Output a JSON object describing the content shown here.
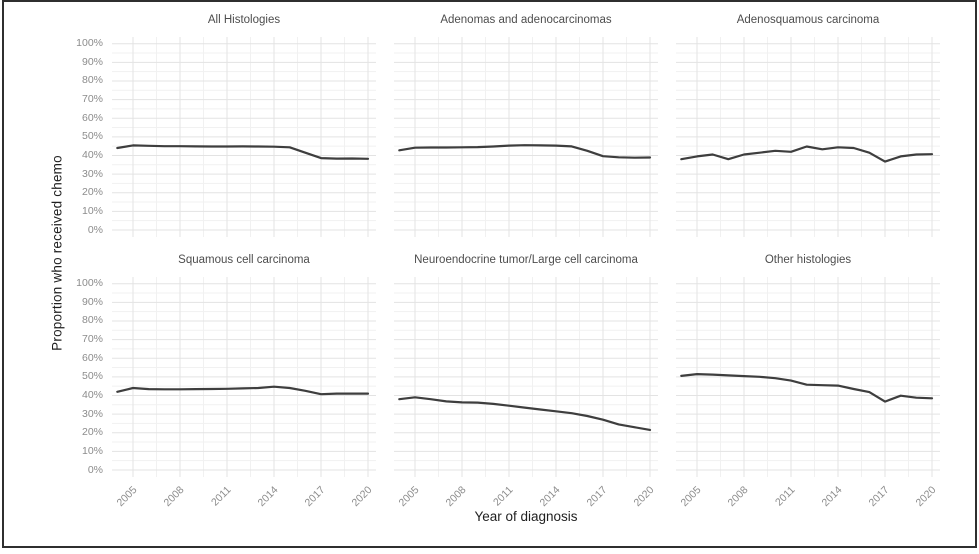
{
  "figure": {
    "y_axis_title": "Proportion who received chemo",
    "x_axis_title": "Year of diagnosis",
    "y_ticks": [
      "100%",
      "90%",
      "80%",
      "70%",
      "60%",
      "50%",
      "40%",
      "30%",
      "20%",
      "10%",
      "0%"
    ],
    "x_ticks": [
      "2005",
      "2008",
      "2011",
      "2014",
      "2017",
      "2020"
    ]
  },
  "chart_data": {
    "type": "line",
    "layout": "2x3-facet-grid",
    "x": [
      2004,
      2005,
      2006,
      2007,
      2008,
      2009,
      2010,
      2011,
      2012,
      2013,
      2014,
      2015,
      2016,
      2017,
      2018,
      2019,
      2020
    ],
    "series": [
      {
        "name": "All Histologies",
        "values": [
          44.0,
          45.4,
          45.2,
          45.0,
          45.0,
          44.9,
          44.8,
          44.8,
          44.9,
          44.8,
          44.7,
          44.4,
          41.5,
          38.6,
          38.3,
          38.4,
          38.2
        ]
      },
      {
        "name": "Adenomas and adenocarcinomas",
        "values": [
          42.8,
          44.2,
          44.3,
          44.3,
          44.4,
          44.5,
          44.8,
          45.3,
          45.5,
          45.4,
          45.3,
          44.9,
          42.5,
          39.6,
          39.0,
          38.8,
          38.9
        ]
      },
      {
        "name": "Adenosquamous carcinoma",
        "values": [
          38.0,
          39.5,
          40.5,
          38.0,
          40.5,
          41.5,
          42.5,
          42.0,
          44.8,
          43.3,
          44.4,
          44.0,
          41.5,
          36.7,
          39.5,
          40.5,
          40.7
        ]
      },
      {
        "name": "Squamous cell carcinoma",
        "values": [
          42.0,
          44.0,
          43.4,
          43.3,
          43.3,
          43.4,
          43.5,
          43.6,
          43.8,
          44.0,
          44.7,
          44.0,
          42.5,
          40.7,
          41.0,
          41.0,
          41.0
        ]
      },
      {
        "name": "Neuroendocrine tumor/Large cell carcinoma",
        "values": [
          38.0,
          39.0,
          38.0,
          36.8,
          36.3,
          36.2,
          35.5,
          34.5,
          33.5,
          32.5,
          31.5,
          30.5,
          29.0,
          27.0,
          24.5,
          23.0,
          21.5
        ]
      },
      {
        "name": "Other histologies",
        "values": [
          50.5,
          51.5,
          51.2,
          50.8,
          50.4,
          50.0,
          49.3,
          48.0,
          45.8,
          45.5,
          45.3,
          43.5,
          41.8,
          36.7,
          39.9,
          38.8,
          38.5
        ]
      }
    ],
    "title": "",
    "xlabel": "Year of diagnosis",
    "ylabel": "Proportion who received chemo",
    "ylim": [
      0,
      100
    ],
    "y_tick_step": 10,
    "x_major_ticks": [
      2005,
      2008,
      2011,
      2014,
      2017,
      2020
    ],
    "grid": "major-and-minor",
    "legend": "none"
  },
  "colors": {
    "line": "#3e3e3e",
    "grid_major": "#e3e3e3",
    "grid_minor": "#f1f1f1",
    "tick_label": "#8c8c8c",
    "panel_title": "#4d4d4d",
    "axis_title": "#1f1f1f",
    "border": "#2f2f2f",
    "background": "#ffffff"
  }
}
